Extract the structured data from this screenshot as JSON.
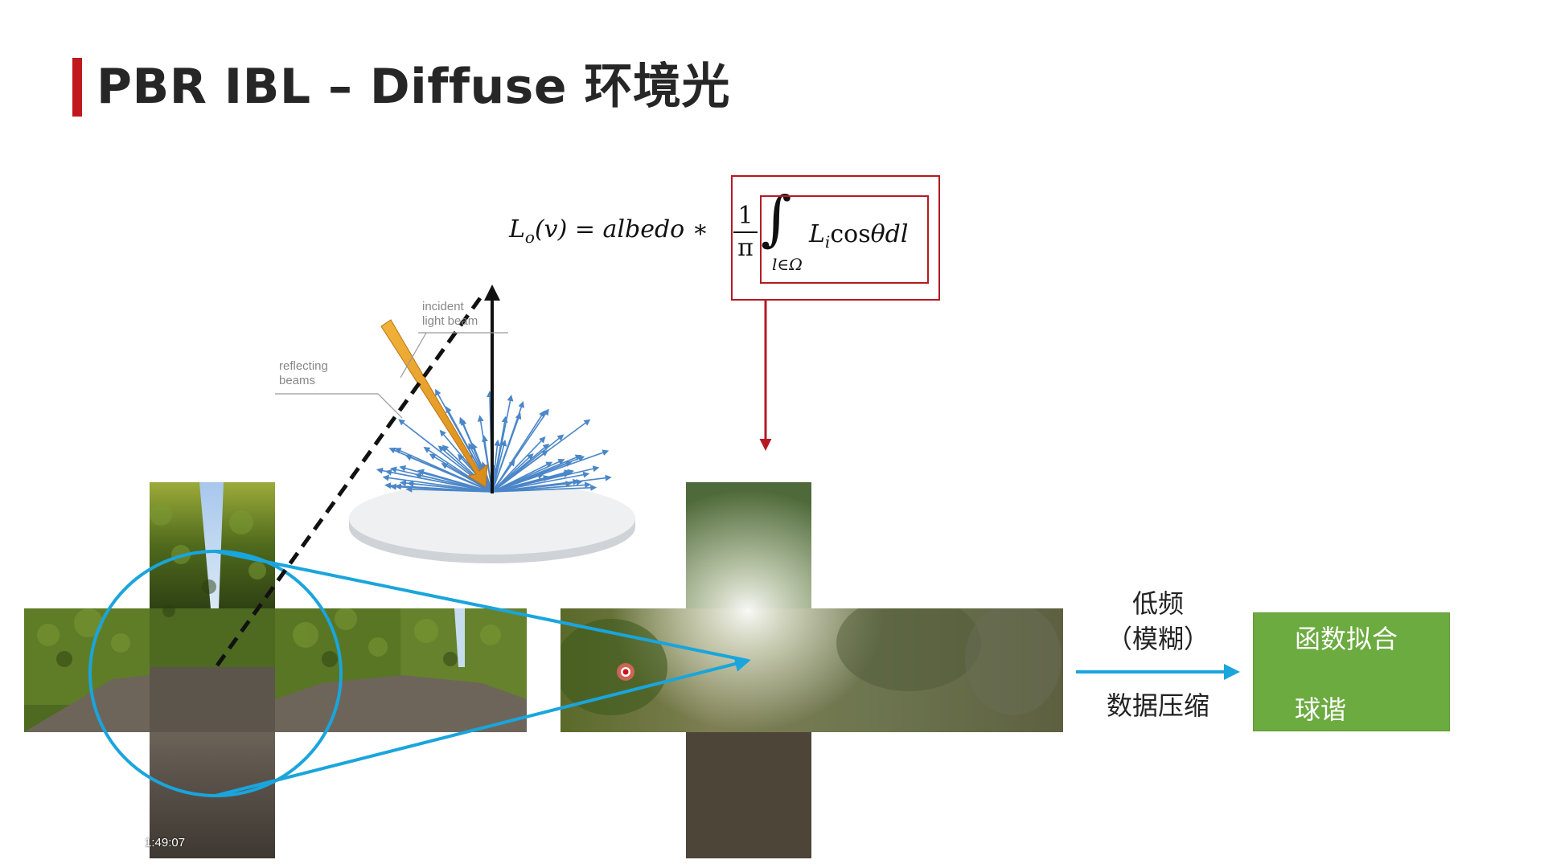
{
  "slide": {
    "title": "PBR IBL – Diffuse 环境光"
  },
  "formula": {
    "lhs": "L",
    "lhs_sub": "o",
    "lhs_rest": "(v) = albedo ∗",
    "frac_num": "1",
    "frac_den": "π",
    "integral": "∫",
    "integral_sub": "l∈Ω",
    "integrand_L": "L",
    "integrand_sub": "i",
    "integrand_cos": "cos",
    "integrand_rest": "θdl"
  },
  "diagram": {
    "incident_label": "incident\nlight beam",
    "reflecting_label": "reflecting\nbeams"
  },
  "arrow_labels": {
    "low_freq": "低频",
    "blur": "（模糊）",
    "compress": "数据压缩"
  },
  "result_box": {
    "line1": "函数拟合",
    "line2": "球谐"
  },
  "overlay": {
    "timestamp": "1:49:07"
  },
  "colors": {
    "accent_red": "#c0181e",
    "cyan": "#1aa5dc",
    "green": "#6cab3f",
    "dark_red_arrow": "#b51a23"
  }
}
